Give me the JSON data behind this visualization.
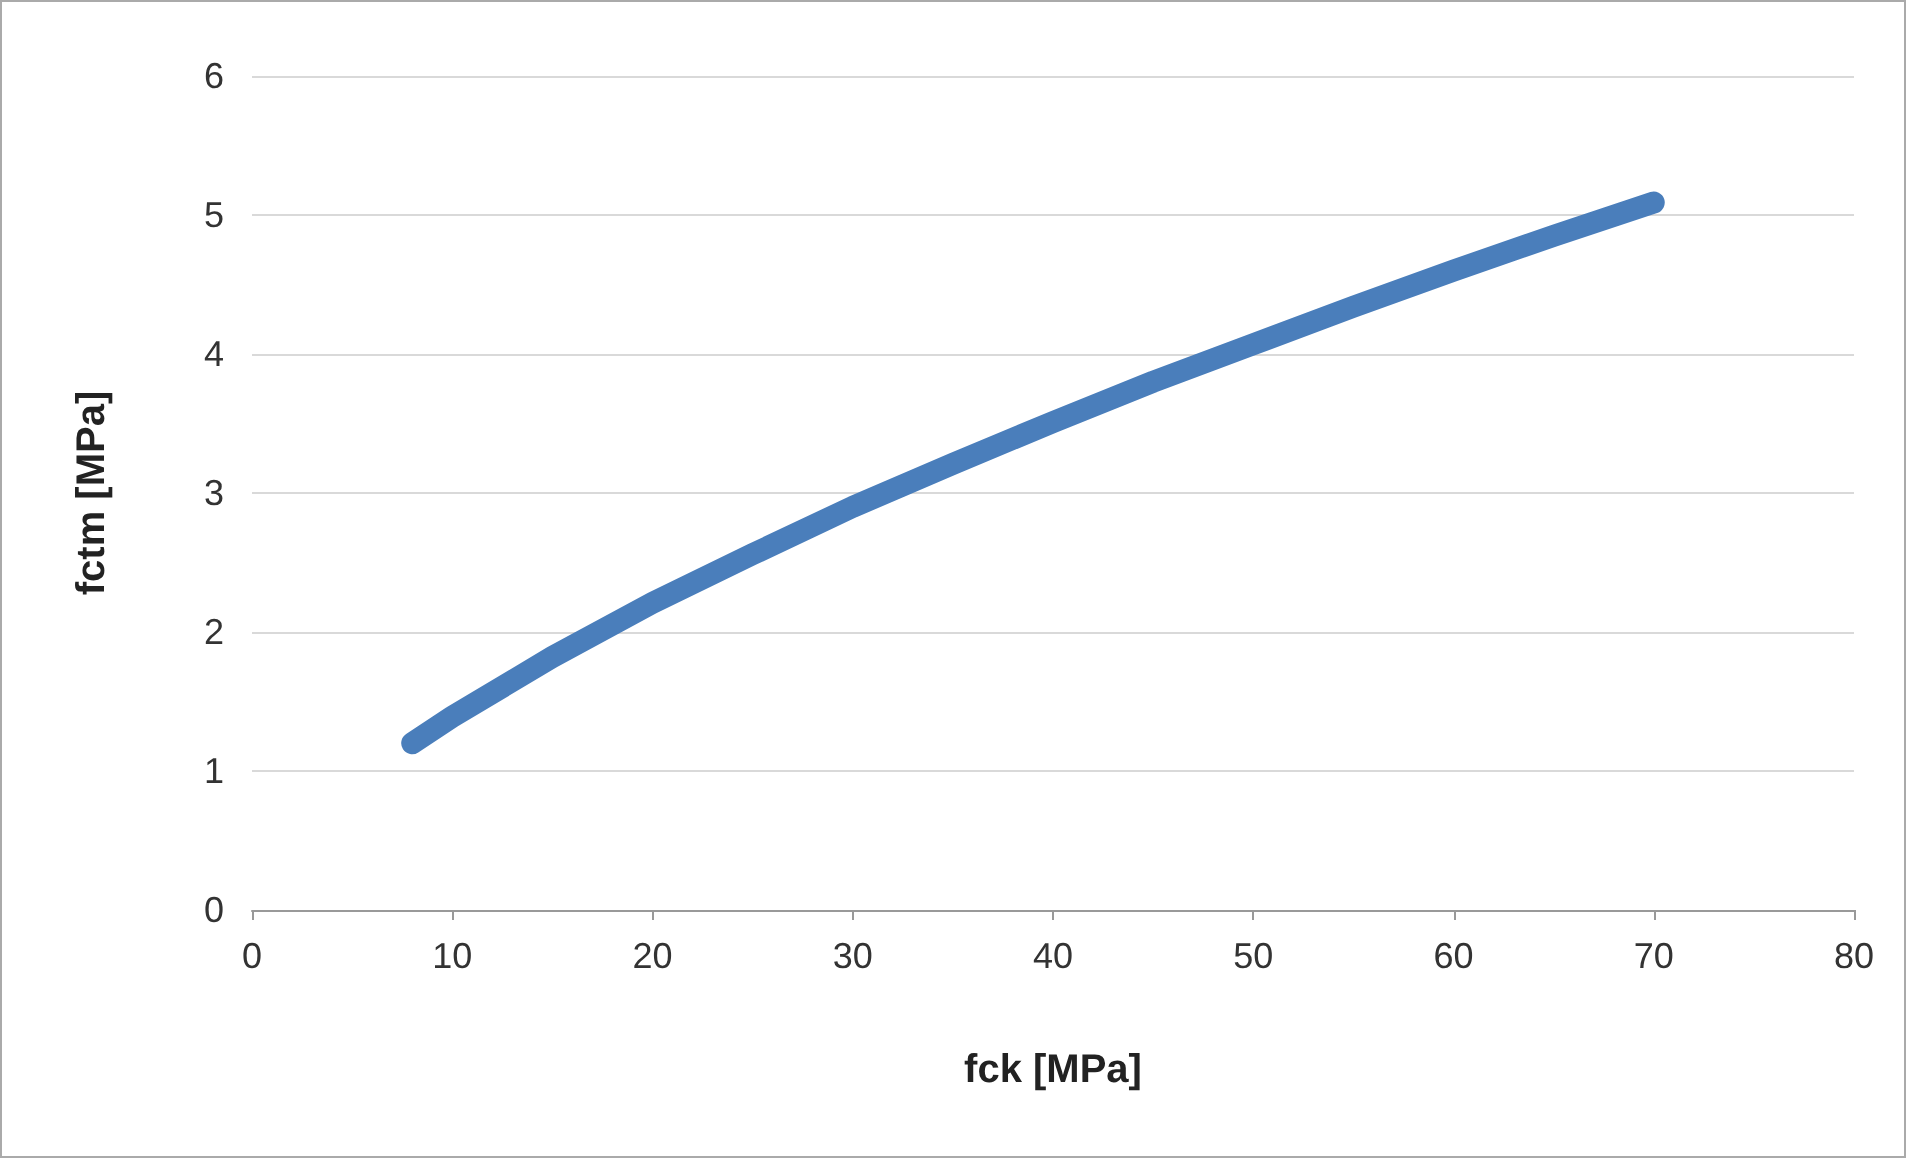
{
  "chart_data": {
    "type": "line",
    "xlabel": "fck [MPa]",
    "ylabel": "fctm [MPa]",
    "x": [
      8,
      10,
      15,
      20,
      25,
      30,
      35,
      40,
      45,
      50,
      55,
      60,
      65,
      70
    ],
    "series": [
      {
        "color": "#4a7ebb",
        "values": [
          1.2,
          1.39,
          1.82,
          2.21,
          2.56,
          2.9,
          3.21,
          3.51,
          3.8,
          4.07,
          4.34,
          4.6,
          4.85,
          5.09
        ]
      }
    ],
    "xlim": [
      0,
      80
    ],
    "xticks": [
      0,
      10,
      20,
      30,
      40,
      50,
      60,
      70,
      80
    ],
    "ylim": [
      0,
      6
    ],
    "yticks": [
      0,
      1,
      2,
      3,
      4,
      5,
      6
    ],
    "grid": "y",
    "line_style": "solid"
  }
}
